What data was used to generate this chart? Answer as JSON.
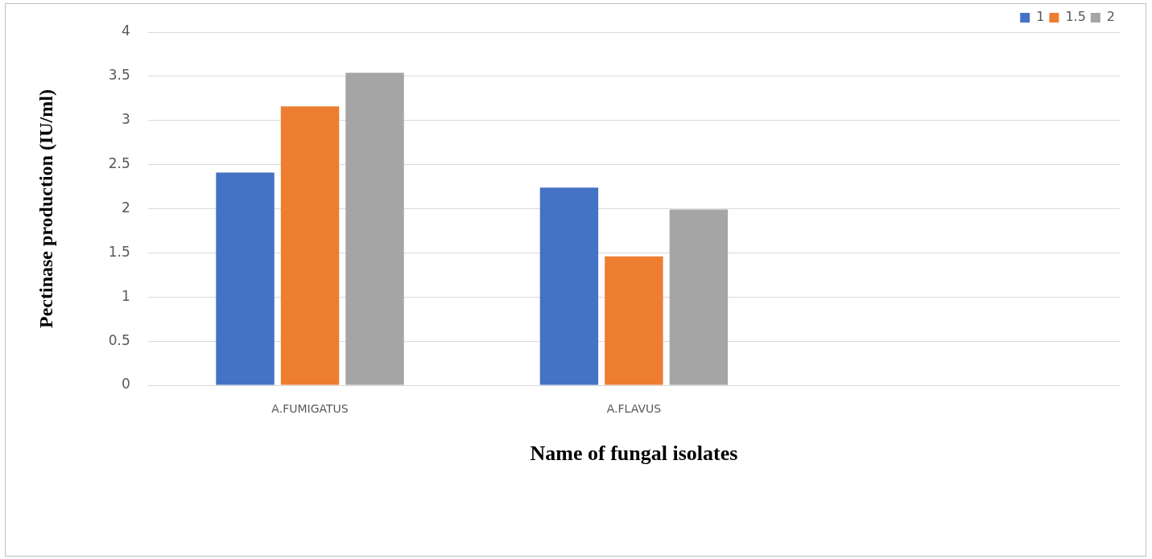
{
  "chart_data": {
    "type": "bar",
    "xlabel": "Name of fungal isolates",
    "ylabel": "Pectinase production (IU/ml)",
    "categories": [
      "A.FUMIGATUS",
      "A.FLAVUS",
      null
    ],
    "series": [
      {
        "name": "1",
        "color": "#4472c4",
        "values": [
          2.41,
          2.24,
          null
        ]
      },
      {
        "name": "1.5",
        "color": "#ed7d31",
        "values": [
          3.16,
          1.46,
          null
        ]
      },
      {
        "name": "2",
        "color": "#a5a5a5",
        "values": [
          3.54,
          1.99,
          null
        ]
      }
    ],
    "ylim": [
      0,
      4
    ],
    "yticks": [
      0,
      0.5,
      1,
      1.5,
      2,
      2.5,
      3,
      3.5,
      4
    ],
    "grid": "y",
    "legend": "top right"
  }
}
